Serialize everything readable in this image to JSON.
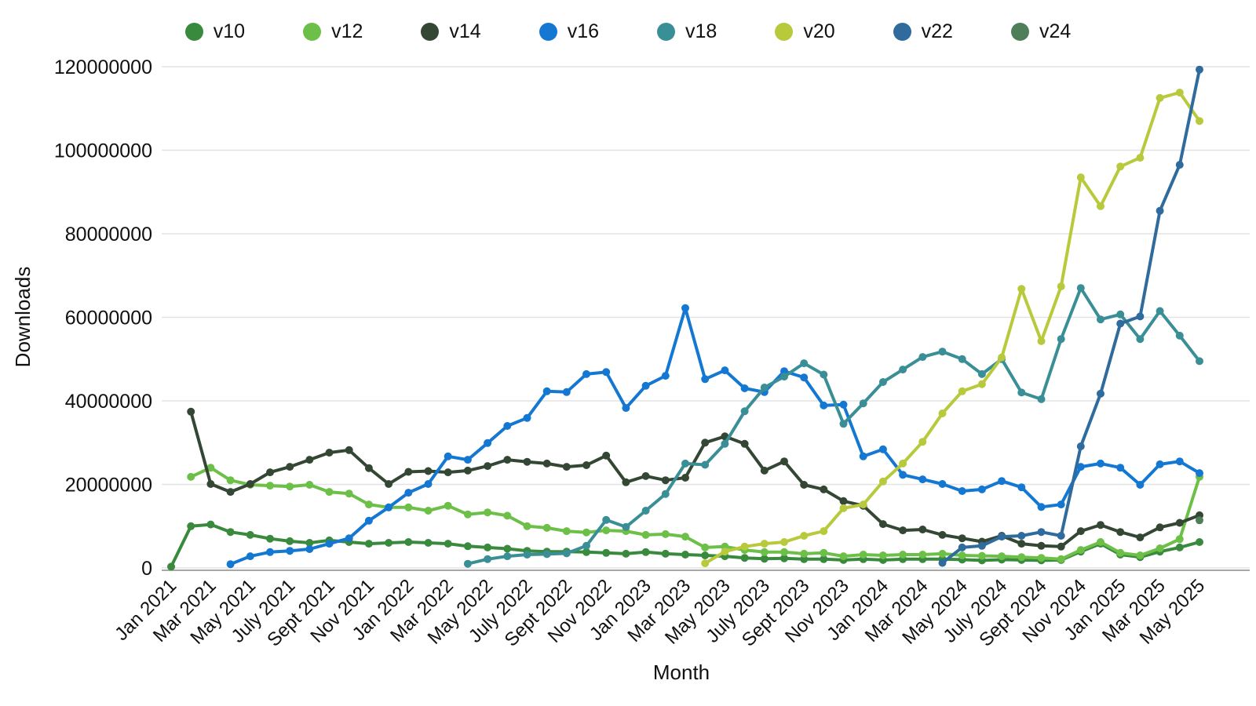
{
  "axes": {
    "x_title": "Month",
    "y_title": "Downloads"
  },
  "chart_data": {
    "type": "line",
    "title": "",
    "xlabel": "Month",
    "ylabel": "Downloads",
    "unit_multiplier": 1000000,
    "ylim": [
      0,
      120000000
    ],
    "ytick_step": 20000000,
    "grid": "horizontal",
    "legend_position": "top-center",
    "n_points": 53,
    "x_tick_every": 2,
    "x_tick_labels": [
      "Jan 2021",
      "Mar 2021",
      "May 2021",
      "July 2021",
      "Sept 2021",
      "Nov 2021",
      "Jan 2022",
      "Mar 2022",
      "May 2022",
      "July 2022",
      "Sept 2022",
      "Nov 2022",
      "Jan 2023",
      "Mar 2023",
      "May 2023",
      "July 2023",
      "Sept 2023",
      "Nov 2023",
      "Jan 2024",
      "Mar 2024",
      "May 2024",
      "July 2024",
      "Sept 2024",
      "Nov 2024",
      "Jan 2025",
      "Mar 2025",
      "May 2025"
    ],
    "series": [
      {
        "name": "v10",
        "color": "#3a8a3e",
        "values_millions": [
          0.3,
          10.0,
          10.4,
          8.6,
          7.9,
          7.0,
          6.4,
          6.0,
          6.6,
          6.2,
          5.8,
          6.0,
          6.2,
          6.0,
          5.8,
          5.2,
          4.9,
          4.6,
          4.1,
          3.9,
          3.9,
          3.8,
          3.6,
          3.4,
          3.8,
          3.4,
          3.2,
          3.0,
          2.8,
          2.4,
          2.2,
          2.3,
          2.1,
          2.1,
          1.9,
          2.1,
          1.9,
          2.1,
          2.1,
          2.1,
          2.0,
          1.8,
          2.0,
          1.9,
          1.8,
          1.9,
          3.9,
          5.8,
          3.2,
          2.6,
          3.9,
          4.9,
          6.2
        ]
      },
      {
        "name": "v12",
        "color": "#6cbf47",
        "values_millions": [
          null,
          21.8,
          24.0,
          21.0,
          19.9,
          19.7,
          19.5,
          19.9,
          18.2,
          17.8,
          15.2,
          14.5,
          14.5,
          13.7,
          14.9,
          12.8,
          13.3,
          12.5,
          10.0,
          9.6,
          8.8,
          8.5,
          9.0,
          8.8,
          7.9,
          8.1,
          7.5,
          4.9,
          5.1,
          4.3,
          3.8,
          3.8,
          3.4,
          3.6,
          2.8,
          3.2,
          3.0,
          3.2,
          3.2,
          3.4,
          3.0,
          2.9,
          2.8,
          2.6,
          2.4,
          2.1,
          4.3,
          6.2,
          3.6,
          3.0,
          4.7,
          6.9,
          21.8
        ]
      },
      {
        "name": "v14",
        "color": "#344734",
        "values_millions": [
          null,
          37.4,
          20.1,
          18.2,
          20.1,
          22.9,
          24.2,
          25.9,
          27.6,
          28.2,
          23.9,
          20.1,
          23.0,
          23.2,
          22.9,
          23.3,
          24.4,
          25.9,
          25.4,
          25.0,
          24.2,
          24.6,
          26.9,
          20.5,
          22.0,
          21.0,
          21.6,
          30.0,
          31.5,
          29.7,
          23.3,
          25.5,
          19.9,
          18.8,
          16.0,
          14.9,
          10.5,
          9.0,
          9.2,
          7.9,
          7.1,
          6.3,
          7.7,
          5.8,
          5.3,
          5.1,
          8.8,
          10.3,
          8.6,
          7.3,
          9.7,
          10.8,
          12.6
        ]
      },
      {
        "name": "v16",
        "color": "#1478d2",
        "values_millions": [
          null,
          null,
          null,
          0.9,
          2.8,
          3.8,
          4.1,
          4.5,
          5.8,
          7.1,
          11.3,
          14.5,
          18.0,
          20.1,
          26.7,
          25.9,
          29.9,
          34.0,
          35.9,
          42.3,
          42.1,
          46.4,
          46.9,
          38.3,
          43.6,
          46.0,
          62.2,
          45.2,
          47.3,
          43.0,
          42.1,
          47.1,
          45.6,
          38.9,
          39.1,
          26.7,
          28.4,
          22.3,
          21.2,
          20.1,
          18.4,
          18.8,
          20.8,
          19.3,
          14.6,
          15.2,
          24.2,
          25.0,
          24.0,
          19.9,
          24.8,
          25.5,
          22.7
        ]
      },
      {
        "name": "v18",
        "color": "#3a8f96",
        "values_millions": [
          null,
          null,
          null,
          null,
          null,
          null,
          null,
          null,
          null,
          null,
          null,
          null,
          null,
          null,
          null,
          1.0,
          2.1,
          2.8,
          3.2,
          3.3,
          3.5,
          5.3,
          11.5,
          9.8,
          13.7,
          17.7,
          25.0,
          24.7,
          29.7,
          37.5,
          43.2,
          45.8,
          49.0,
          46.3,
          34.5,
          39.4,
          44.5,
          47.5,
          50.5,
          51.8,
          50.0,
          46.4,
          50.0,
          42.0,
          40.4,
          54.8,
          67.0,
          59.5,
          60.7,
          54.8,
          61.5,
          55.6,
          49.5
        ]
      },
      {
        "name": "v20",
        "color": "#b9c93c",
        "values_millions": [
          null,
          null,
          null,
          null,
          null,
          null,
          null,
          null,
          null,
          null,
          null,
          null,
          null,
          null,
          null,
          null,
          null,
          null,
          null,
          null,
          null,
          null,
          null,
          null,
          null,
          null,
          null,
          1.1,
          3.9,
          5.1,
          5.8,
          6.2,
          7.7,
          8.8,
          14.3,
          15.2,
          20.7,
          25.0,
          30.2,
          37.0,
          42.3,
          44.0,
          50.4,
          66.8,
          54.3,
          67.4,
          93.5,
          86.6,
          96.1,
          98.2,
          112.5,
          113.8,
          107.0
        ]
      },
      {
        "name": "v22",
        "color": "#2f6b9c",
        "values_millions": [
          null,
          null,
          null,
          null,
          null,
          null,
          null,
          null,
          null,
          null,
          null,
          null,
          null,
          null,
          null,
          null,
          null,
          null,
          null,
          null,
          null,
          null,
          null,
          null,
          null,
          null,
          null,
          null,
          null,
          null,
          null,
          null,
          null,
          null,
          null,
          null,
          null,
          null,
          null,
          1.2,
          4.9,
          5.3,
          7.5,
          7.7,
          8.6,
          7.7,
          29.1,
          41.7,
          58.5,
          60.2,
          85.5,
          96.5,
          119.3
        ]
      },
      {
        "name": "v24",
        "color": "#4f7f58",
        "values_millions": [
          null,
          null,
          null,
          null,
          null,
          null,
          null,
          null,
          null,
          null,
          null,
          null,
          null,
          null,
          null,
          null,
          null,
          null,
          null,
          null,
          null,
          null,
          null,
          null,
          null,
          null,
          null,
          null,
          null,
          null,
          null,
          null,
          null,
          null,
          null,
          null,
          null,
          null,
          null,
          null,
          null,
          null,
          null,
          null,
          null,
          null,
          null,
          null,
          null,
          null,
          null,
          null,
          11.4
        ]
      }
    ]
  },
  "style_tokens": {
    "grid_color": "#e3e3e3",
    "axis_line_color": "#8c8c8c",
    "text_color": "#111111",
    "background": "#ffffff"
  }
}
